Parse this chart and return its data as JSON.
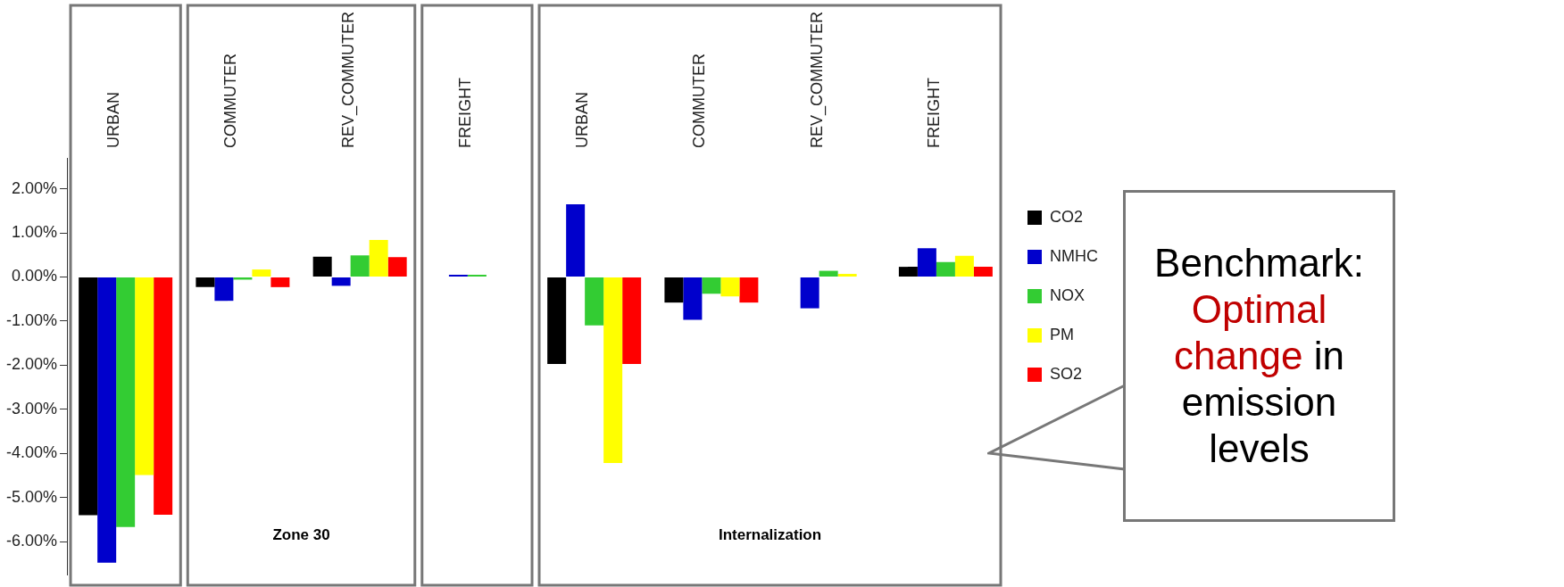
{
  "chart_data": {
    "type": "bar",
    "categories": [
      "URBAN",
      "COMMUTER",
      "REV_COMMUTER",
      "FREIGHT",
      "URBAN",
      "COMMUTER",
      "REV_COMMUTER",
      "FREIGHT"
    ],
    "series": [
      {
        "name": "CO2",
        "color": "#000000",
        "values": [
          -5.4,
          -0.23,
          0.46,
          0,
          -1.97,
          -0.58,
          0.0,
          0.23
        ]
      },
      {
        "name": "NMHC",
        "color": "#0000cc",
        "values": [
          -6.48,
          -0.54,
          -0.2,
          0.05,
          1.65,
          -0.97,
          -0.71,
          0.65
        ]
      },
      {
        "name": "NOX",
        "color": "#33cc33",
        "values": [
          -5.67,
          -0.06,
          0.49,
          0.05,
          -1.1,
          -0.38,
          0.14,
          0.34
        ]
      },
      {
        "name": "PM",
        "color": "#ffff00",
        "values": [
          -4.49,
          0.17,
          0.84,
          0,
          -4.22,
          -0.44,
          0.07,
          0.48
        ]
      },
      {
        "name": "SO2",
        "color": "#ff0000",
        "values": [
          -5.39,
          -0.23,
          0.45,
          0,
          -1.97,
          -0.58,
          0.0,
          0.23
        ]
      }
    ],
    "ylim": [
      -6.75,
      2.7
    ],
    "yticks": [
      {
        "value": -6,
        "label": "-6.00%"
      },
      {
        "value": -5,
        "label": "-5.00%"
      },
      {
        "value": -4,
        "label": "-4.00%"
      },
      {
        "value": -3,
        "label": "-3.00%"
      },
      {
        "value": -2,
        "label": "-2.00%"
      },
      {
        "value": -1,
        "label": "-1.00%"
      },
      {
        "value": 0,
        "label": "0.00%"
      },
      {
        "value": 1,
        "label": "1.00%"
      },
      {
        "value": 2,
        "label": "2.00%"
      }
    ],
    "grid": false,
    "legend": "right",
    "annotations": [
      "Zone 30",
      "Internalization",
      "Benchmark:",
      "Optimal change",
      "in emission levels"
    ]
  }
}
